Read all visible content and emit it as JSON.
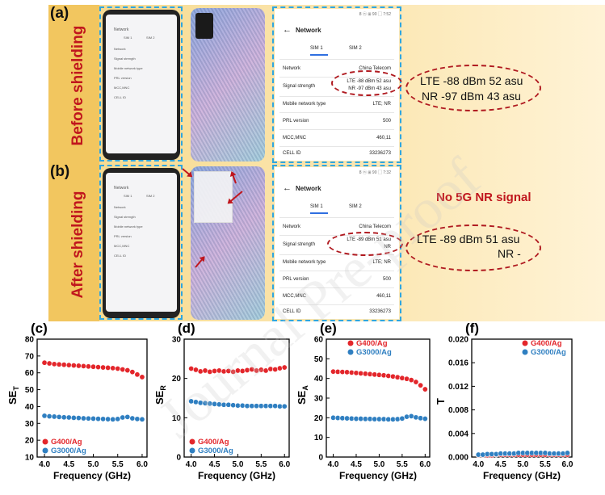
{
  "panels": {
    "a": {
      "letter": "(a)",
      "side_label": "Before shielding"
    },
    "b": {
      "letter": "(b)",
      "side_label": "After shielding"
    }
  },
  "phone_screen": {
    "title": "Network",
    "tab1": "SIM 1",
    "tab2": "SIM 2",
    "rows": [
      "Network",
      "Signal strength",
      "Mobile network type",
      "PRL version",
      "MCC,MNC",
      "CELL ID"
    ]
  },
  "screenshot_a": {
    "status": "8 ⓝ ⊞ 90 ▢ 7:52",
    "title": "Network",
    "tab1": "SIM 1",
    "tab2": "SIM 2",
    "rows": [
      {
        "label": "Network",
        "value": "China Telecom"
      },
      {
        "label": "Signal strength",
        "value": "LTE -88 dBm  52 asu",
        "value2": "NR -97 dBm  43 asu"
      },
      {
        "label": "Mobile network type",
        "value": "LTE; NR"
      },
      {
        "label": "PRL version",
        "value": "500"
      },
      {
        "label": "MCC,MNC",
        "value": "460,11"
      },
      {
        "label": "CELL ID",
        "value": "33236273"
      }
    ]
  },
  "screenshot_b": {
    "status": "8 ⓝ ⊞ 90 ▢ 7:32",
    "title": "Network",
    "tab1": "SIM 1",
    "tab2": "SIM 2",
    "rows": [
      {
        "label": "Network",
        "value": "China Telecom"
      },
      {
        "label": "Signal strength",
        "value": "LTE -89 dBm  51 asu",
        "value2": "NR"
      },
      {
        "label": "Mobile network type",
        "value": "LTE; NR"
      },
      {
        "label": "PRL version",
        "value": "500"
      },
      {
        "label": "MCC,MNC",
        "value": "460,11"
      },
      {
        "label": "CELL ID",
        "value": "33236273"
      }
    ]
  },
  "callout_a": {
    "line1": "LTE -88 dBm   52 asu",
    "line2": "NR -97 dBm   43 asu"
  },
  "callout_b": {
    "headline": "No 5G NR signal",
    "line1": "LTE -89 dBm   51 asu",
    "line2": "NR -"
  },
  "watermark": "Journal Pre-proof",
  "chart_data": [
    {
      "type": "scatter",
      "letter": "(c)",
      "ylabel": "SE",
      "ysub": "T",
      "xlabel": "Frequency (GHz)",
      "xlim": [
        3.85,
        6.1
      ],
      "ylim": [
        10,
        80
      ],
      "xticks": [
        "4.0",
        "4.5",
        "5.0",
        "5.5",
        "6.0"
      ],
      "xtick_values": [
        4.0,
        4.5,
        5.0,
        5.5,
        6.0
      ],
      "yticks": [
        "10",
        "20",
        "30",
        "40",
        "50",
        "60",
        "70",
        "80"
      ],
      "ytick_values": [
        10,
        20,
        30,
        40,
        50,
        60,
        70,
        80
      ],
      "legend_position": "bottom-left",
      "series": [
        {
          "name": "G400/Ag",
          "color": "#e3262b",
          "x": [
            4.0,
            4.1,
            4.2,
            4.3,
            4.4,
            4.5,
            4.6,
            4.7,
            4.8,
            4.9,
            5.0,
            5.1,
            5.2,
            5.3,
            5.4,
            5.5,
            5.6,
            5.7,
            5.8,
            5.9,
            6.0
          ],
          "y": [
            66,
            65.6,
            65.2,
            65,
            64.8,
            64.6,
            64.4,
            64.2,
            64,
            63.8,
            63.6,
            63.4,
            63.2,
            63,
            62.8,
            62.5,
            62,
            61.5,
            60.5,
            59,
            57.5
          ]
        },
        {
          "name": "G3000/Ag",
          "color": "#2f7fc1",
          "x": [
            4.0,
            4.1,
            4.2,
            4.3,
            4.4,
            4.5,
            4.6,
            4.7,
            4.8,
            4.9,
            5.0,
            5.1,
            5.2,
            5.3,
            5.4,
            5.5,
            5.6,
            5.7,
            5.8,
            5.9,
            6.0
          ],
          "y": [
            34.5,
            34.2,
            34,
            33.8,
            33.6,
            33.5,
            33.3,
            33.2,
            33,
            32.9,
            32.8,
            32.7,
            32.6,
            32.5,
            32.4,
            32.6,
            33.5,
            33.8,
            33,
            32.6,
            32.4
          ]
        }
      ]
    },
    {
      "type": "scatter",
      "letter": "(d)",
      "ylabel": "SE",
      "ysub": "R",
      "xlabel": "Frequency (GHz)",
      "xlim": [
        3.85,
        6.1
      ],
      "ylim": [
        0,
        30
      ],
      "xticks": [
        "4.0",
        "4.5",
        "5.0",
        "5.5",
        "6.0"
      ],
      "xtick_values": [
        4.0,
        4.5,
        5.0,
        5.5,
        6.0
      ],
      "yticks": [
        "0",
        "10",
        "20",
        "30"
      ],
      "ytick_values": [
        0,
        10,
        20,
        30
      ],
      "legend_position": "bottom-left",
      "series": [
        {
          "name": "G400/Ag",
          "color": "#e3262b",
          "x": [
            4.0,
            4.1,
            4.2,
            4.3,
            4.4,
            4.5,
            4.6,
            4.7,
            4.8,
            4.9,
            5.0,
            5.1,
            5.2,
            5.3,
            5.4,
            5.5,
            5.6,
            5.7,
            5.8,
            5.9,
            6.0
          ],
          "y": [
            22.5,
            22.2,
            21.8,
            22,
            21.7,
            21.9,
            22,
            21.8,
            21.9,
            21.7,
            22,
            21.9,
            22.1,
            22.3,
            22,
            22.2,
            22,
            22.4,
            22.3,
            22.6,
            22.8
          ]
        },
        {
          "name": "G3000/Ag",
          "color": "#2f7fc1",
          "x": [
            4.0,
            4.1,
            4.2,
            4.3,
            4.4,
            4.5,
            4.6,
            4.7,
            4.8,
            4.9,
            5.0,
            5.1,
            5.2,
            5.3,
            5.4,
            5.5,
            5.6,
            5.7,
            5.8,
            5.9,
            6.0
          ],
          "y": [
            14.2,
            14,
            13.8,
            13.7,
            13.6,
            13.5,
            13.4,
            13.3,
            13.3,
            13.2,
            13.1,
            13.1,
            13,
            13,
            13,
            13,
            13,
            13,
            13,
            12.9,
            12.9
          ]
        }
      ]
    },
    {
      "type": "scatter",
      "letter": "(e)",
      "ylabel": "SE",
      "ysub": "A",
      "xlabel": "Frequency (GHz)",
      "xlim": [
        3.85,
        6.1
      ],
      "ylim": [
        0,
        60
      ],
      "xticks": [
        "4.0",
        "4.5",
        "5.0",
        "5.5",
        "6.0"
      ],
      "xtick_values": [
        4.0,
        4.5,
        5.0,
        5.5,
        6.0
      ],
      "yticks": [
        "0",
        "10",
        "20",
        "30",
        "40",
        "50",
        "60"
      ],
      "ytick_values": [
        0,
        10,
        20,
        30,
        40,
        50,
        60
      ],
      "legend_position": "top-right",
      "series": [
        {
          "name": "G400/Ag",
          "color": "#e3262b",
          "x": [
            4.0,
            4.1,
            4.2,
            4.3,
            4.4,
            4.5,
            4.6,
            4.7,
            4.8,
            4.9,
            5.0,
            5.1,
            5.2,
            5.3,
            5.4,
            5.5,
            5.6,
            5.7,
            5.8,
            5.9,
            6.0
          ],
          "y": [
            43.5,
            43.4,
            43.3,
            43.2,
            43,
            42.8,
            42.6,
            42.4,
            42.2,
            42,
            41.8,
            41.6,
            41.3,
            41,
            40.6,
            40.2,
            39.8,
            39.2,
            38.2,
            36.5,
            34.5
          ]
        },
        {
          "name": "G3000/Ag",
          "color": "#2f7fc1",
          "x": [
            4.0,
            4.1,
            4.2,
            4.3,
            4.4,
            4.5,
            4.6,
            4.7,
            4.8,
            4.9,
            5.0,
            5.1,
            5.2,
            5.3,
            5.4,
            5.5,
            5.6,
            5.7,
            5.8,
            5.9,
            6.0
          ],
          "y": [
            20,
            19.9,
            19.8,
            19.7,
            19.6,
            19.5,
            19.5,
            19.4,
            19.4,
            19.3,
            19.3,
            19.3,
            19.2,
            19.2,
            19.3,
            19.6,
            20.5,
            20.8,
            20.2,
            19.8,
            19.5
          ]
        }
      ]
    },
    {
      "type": "scatter",
      "letter": "(f)",
      "ylabel": "T",
      "ysub": "",
      "xlabel": "Frequency (GHz)",
      "xlim": [
        3.85,
        6.1
      ],
      "ylim": [
        0,
        0.02
      ],
      "xticks": [
        "4.0",
        "4.5",
        "5.0",
        "5.5",
        "6.0"
      ],
      "xtick_values": [
        4.0,
        4.5,
        5.0,
        5.5,
        6.0
      ],
      "yticks": [
        "0.000",
        "0.004",
        "0.008",
        "0.012",
        "0.016",
        "0.020"
      ],
      "ytick_values": [
        0,
        0.004,
        0.008,
        0.012,
        0.016,
        0.02
      ],
      "legend_position": "top-right",
      "series": [
        {
          "name": "G400/Ag",
          "color": "#e3262b",
          "x": [
            4.0,
            4.1,
            4.2,
            4.3,
            4.4,
            4.5,
            4.6,
            4.7,
            4.8,
            4.9,
            5.0,
            5.1,
            5.2,
            5.3,
            5.4,
            5.5,
            5.6,
            5.7,
            5.8,
            5.9,
            6.0
          ],
          "y": [
            0.0003,
            0.0003,
            0.0003,
            0.0003,
            0.0004,
            0.0004,
            0.0004,
            0.0004,
            0.0004,
            0.0004,
            0.0004,
            0.0004,
            0.0004,
            0.0004,
            0.0004,
            0.0004,
            0.0004,
            0.0004,
            0.0004,
            0.0004,
            0.0004
          ]
        },
        {
          "name": "G3000/Ag",
          "color": "#2f7fc1",
          "x": [
            4.0,
            4.1,
            4.2,
            4.3,
            4.4,
            4.5,
            4.6,
            4.7,
            4.8,
            4.9,
            5.0,
            5.1,
            5.2,
            5.3,
            5.4,
            5.5,
            5.6,
            5.7,
            5.8,
            5.9,
            6.0
          ],
          "y": [
            0.0004,
            0.0004,
            0.0005,
            0.0005,
            0.0005,
            0.0006,
            0.0006,
            0.0006,
            0.0006,
            0.0007,
            0.0007,
            0.0007,
            0.0007,
            0.0007,
            0.0007,
            0.0007,
            0.0006,
            0.0006,
            0.0006,
            0.0006,
            0.0007
          ]
        }
      ]
    }
  ]
}
